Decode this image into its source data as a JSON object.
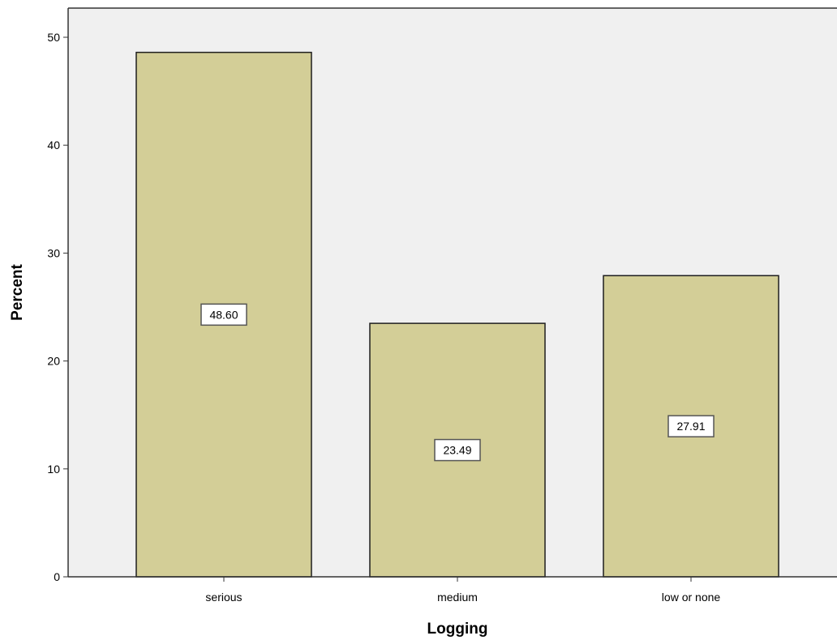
{
  "chart_data": {
    "type": "bar",
    "categories": [
      "serious",
      "medium",
      "low or none"
    ],
    "values": [
      48.6,
      23.49,
      27.91
    ],
    "data_labels": [
      "48.60",
      "23.49",
      "27.91"
    ],
    "title": "",
    "xlabel": "Logging",
    "ylabel": "Percent",
    "ylim": [
      0,
      50
    ],
    "yticks": [
      0,
      10,
      20,
      30,
      40,
      50
    ],
    "ytick_labels": [
      "0",
      "10",
      "20",
      "30",
      "40",
      "50"
    ],
    "grid": false,
    "legend": "none",
    "colors": {
      "bar_fill": "#d3ce97",
      "bar_stroke": "#1e1e1e",
      "plot_background": "#f0f0f0",
      "axis": "#333333",
      "label_box_fill": "#ffffff"
    }
  }
}
